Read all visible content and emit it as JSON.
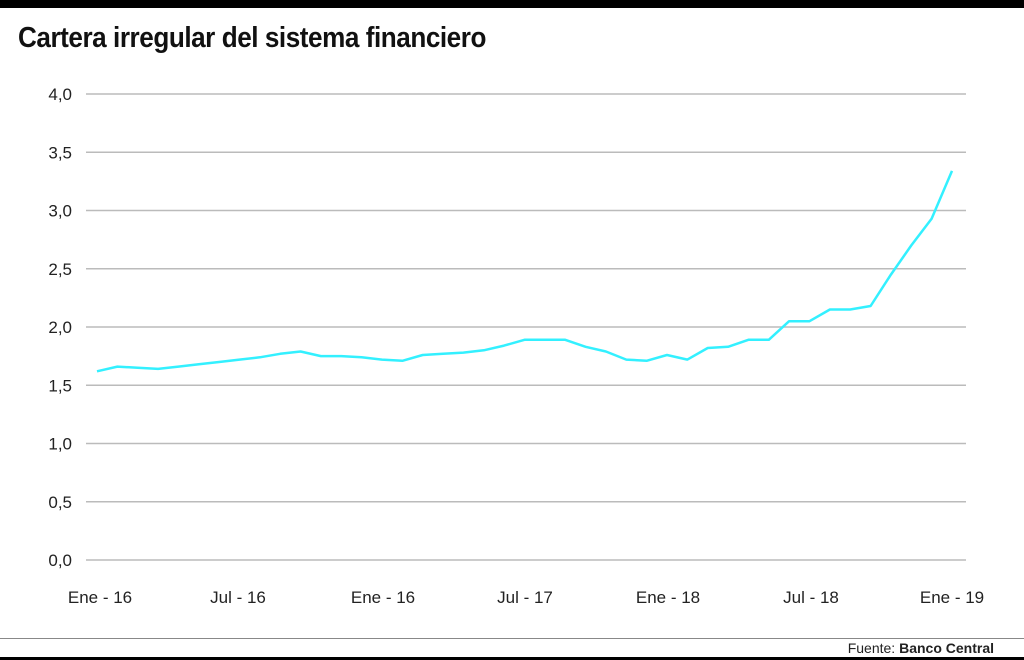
{
  "colors": {
    "line": "#33f0ff",
    "grid": "#bbbbbb",
    "text": "#222222"
  },
  "footer": {
    "label": "Fuente:",
    "source": "Banco Central"
  },
  "chart_data": {
    "type": "line",
    "title": "Cartera irregular del sistema financiero",
    "xlabel": "",
    "ylabel": "",
    "ylim": [
      0,
      4
    ],
    "yticks": [
      "0,0",
      "0,5",
      "1,0",
      "1,5",
      "2,0",
      "2,5",
      "3,0",
      "3,5",
      "4,0"
    ],
    "xticks": [
      "Ene - 16",
      "Jul - 16",
      "Ene - 16",
      "Jul - 17",
      "Ene - 18",
      "Jul - 18",
      "Ene - 19"
    ],
    "grid": true,
    "legend": "none",
    "series": [
      {
        "values": [
          1.62,
          1.66,
          1.65,
          1.64,
          1.66,
          1.68,
          1.7,
          1.72,
          1.74,
          1.77,
          1.79,
          1.75,
          1.75,
          1.74,
          1.72,
          1.71,
          1.76,
          1.77,
          1.78,
          1.8,
          1.84,
          1.89,
          1.89,
          1.89,
          1.83,
          1.79,
          1.72,
          1.71,
          1.76,
          1.72,
          1.82,
          1.83,
          1.89,
          1.89,
          2.05,
          2.05,
          2.15,
          2.15,
          2.18,
          2.45,
          2.7,
          2.93,
          3.34
        ]
      }
    ]
  }
}
